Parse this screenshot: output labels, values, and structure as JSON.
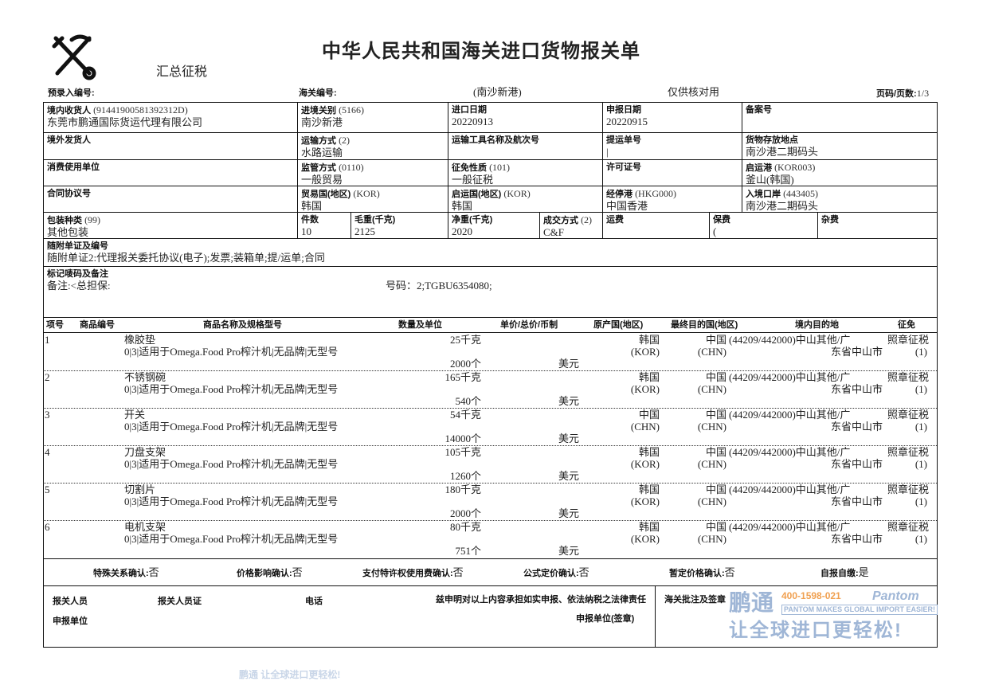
{
  "header": {
    "emblem": "customs-emblem-icon",
    "title": "中华人民共和国海关进口货物报关单",
    "subtitle": "汇总征税",
    "pre_entry_label": "预录入编号:",
    "customs_no_label": "海关编号:",
    "port": "(南沙新港)",
    "note": "仅供核对用",
    "page_label": "页码/页数:",
    "page": "1/3"
  },
  "fields": {
    "consignee": {
      "label": "境内收货人",
      "code": "(91441900581392312D)",
      "value": "东莞市鹏通国际货运代理有限公司"
    },
    "entry_customs": {
      "label": "进境关别",
      "code": "(5166)",
      "value": "南沙新港"
    },
    "import_date": {
      "label": "进口日期",
      "value": "20220913"
    },
    "declare_date": {
      "label": "申报日期",
      "value": "20220915"
    },
    "record_no": {
      "label": "备案号",
      "value": ""
    },
    "consignor": {
      "label": "境外发货人",
      "value": ""
    },
    "transport_mode": {
      "label": "运输方式",
      "code": "(2)",
      "value": "水路运输"
    },
    "vessel": {
      "label": "运输工具名称及航次号",
      "value": ""
    },
    "bl_no": {
      "label": "提运单号",
      "value": "|"
    },
    "storage": {
      "label": "货物存放地点",
      "value": "南沙港二期码头"
    },
    "consumer": {
      "label": "消费使用单位",
      "value": ""
    },
    "supervision": {
      "label": "监管方式",
      "code": "(0110)",
      "value": "一般贸易"
    },
    "levy_nature": {
      "label": "征免性质",
      "code": "(101)",
      "value": "一般征税"
    },
    "license": {
      "label": "许可证号",
      "value": ""
    },
    "departure_port": {
      "label": "启运港",
      "code": "(KOR003)",
      "value": "釜山(韩国)"
    },
    "contract": {
      "label": "合同协议号",
      "value": ""
    },
    "trade_country": {
      "label": "贸易国(地区)",
      "code": "(KOR)",
      "value": "韩国"
    },
    "departure_country": {
      "label": "启运国(地区)",
      "code": "(KOR)",
      "value": "韩国"
    },
    "transit_port": {
      "label": "经停港",
      "code": "(HKG000)",
      "value": "中国香港"
    },
    "entry_port": {
      "label": "入境口岸",
      "code": "(443405)",
      "value": "南沙港二期码头"
    },
    "package_type": {
      "label": "包装种类",
      "code": "(99)",
      "value": "其他包装"
    },
    "pieces": {
      "label": "件数",
      "value": "10"
    },
    "gross_weight": {
      "label": "毛重(千克)",
      "value": "2125"
    },
    "net_weight": {
      "label": "净重(千克)",
      "value": "2020"
    },
    "trade_terms": {
      "label": "成交方式",
      "code": "(2)",
      "value": "C&F"
    },
    "freight": {
      "label": "运费",
      "value": ""
    },
    "insurance": {
      "label": "保费",
      "value": "("
    },
    "misc": {
      "label": "杂费",
      "value": ""
    },
    "documents": {
      "label": "随附单证及编号",
      "value": "随附单证2:代理报关委托协议(电子);发票;装箱单;提/运单;合同"
    },
    "marks": {
      "label": "标记唛码及备注",
      "remark": "备注:<总担保:",
      "container": "号码：2;TGBU6354080;"
    }
  },
  "items_header": [
    "项号",
    "商品编号",
    "商品名称及规格型号",
    "数量及单位",
    "单价/总价/币制",
    "原产国(地区)",
    "最终目的国(地区)",
    "境内目的地",
    "征免"
  ],
  "items": [
    {
      "no": "1",
      "code": "",
      "name": "橡胶垫",
      "spec": "0|3|适用于Omega.Food Pro榨汁机|无品牌|无型号",
      "qty1": "25千克",
      "qty2": "2000个",
      "currency": "美元",
      "origin": "韩国",
      "origin_code": "(KOR)",
      "dest": "中国",
      "dest_code": "(CHN)",
      "domestic1": "(44209/442000)中山其他/广",
      "domestic2": "东省中山市",
      "levy1": "照章征税",
      "levy2": "(1)"
    },
    {
      "no": "2",
      "code": "",
      "name": "不锈钢碗",
      "spec": "0|3|适用于Omega.Food Pro榨汁机|无品牌|无型号",
      "qty1": "165千克",
      "qty2": "540个",
      "currency": "美元",
      "origin": "韩国",
      "origin_code": "(KOR)",
      "dest": "中国",
      "dest_code": "(CHN)",
      "domestic1": "(44209/442000)中山其他/广",
      "domestic2": "东省中山市",
      "levy1": "照章征税",
      "levy2": "(1)"
    },
    {
      "no": "3",
      "code": "",
      "name": "开关",
      "spec": "0|3|适用于Omega.Food Pro榨汁机|无品牌|无型号",
      "qty1": "54千克",
      "qty2": "14000个",
      "currency": "美元",
      "origin": "中国",
      "origin_code": "(CHN)",
      "dest": "中国",
      "dest_code": "(CHN)",
      "domestic1": "(44209/442000)中山其他/广",
      "domestic2": "东省中山市",
      "levy1": "照章征税",
      "levy2": "(1)"
    },
    {
      "no": "4",
      "code": "",
      "name": "刀盘支架",
      "spec": "0|3|适用于Omega.Food Pro榨汁机|无品牌|无型号",
      "qty1": "105千克",
      "qty2": "1260个",
      "currency": "美元",
      "origin": "韩国",
      "origin_code": "(KOR)",
      "dest": "中国",
      "dest_code": "(CHN)",
      "domestic1": "(44209/442000)中山其他/广",
      "domestic2": "东省中山市",
      "levy1": "照章征税",
      "levy2": "(1)"
    },
    {
      "no": "5",
      "code": "",
      "name": "切割片",
      "spec": "0|3|适用于Omega.Food Pro榨汁机|无品牌|无型号",
      "qty1": "180千克",
      "qty2": "2000个",
      "currency": "美元",
      "origin": "韩国",
      "origin_code": "(KOR)",
      "dest": "中国",
      "dest_code": "(CHN)",
      "domestic1": "(44209/442000)中山其他/广",
      "domestic2": "东省中山市",
      "levy1": "照章征税",
      "levy2": "(1)"
    },
    {
      "no": "6",
      "code": "",
      "name": "电机支架",
      "spec": "0|3|适用于Omega.Food Pro榨汁机|无品牌|无型号",
      "qty1": "80千克",
      "qty2": "751个",
      "currency": "美元",
      "origin": "韩国",
      "origin_code": "(KOR)",
      "dest": "中国",
      "dest_code": "(CHN)",
      "domestic1": "(44209/442000)中山其他/广",
      "domestic2": "东省中山市",
      "levy1": "照章征税",
      "levy2": "(1)"
    }
  ],
  "confirm": [
    {
      "label": "特殊关系确认:",
      "value": "否"
    },
    {
      "label": "价格影响确认:",
      "value": "否"
    },
    {
      "label": "支付特许权使用费确认:",
      "value": "否"
    },
    {
      "label": "公式定价确认:",
      "value": "否"
    },
    {
      "label": "暂定价格确认:",
      "value": "否"
    },
    {
      "label": "自报自缴:",
      "value": "是"
    }
  ],
  "footer": {
    "declarant": "报关人员",
    "declarant_cert": "报关人员证",
    "phone": "电话",
    "statement": "兹申明对以上内容承担如实申报、依法纳税之法律责任",
    "unit": "申报单位",
    "unit_seal": "申报单位(签章)",
    "customs_note": "海关批注及签章"
  },
  "logo": {
    "cn": "鹏通",
    "phone": "400-1598-021",
    "brand": "Pantom",
    "tagline": "PANTOM MAKES GLOBAL IMPORT EASIER!",
    "slogan": "让全球进口更轻松!"
  },
  "watermark": "鹏通 让全球进口更轻松!"
}
